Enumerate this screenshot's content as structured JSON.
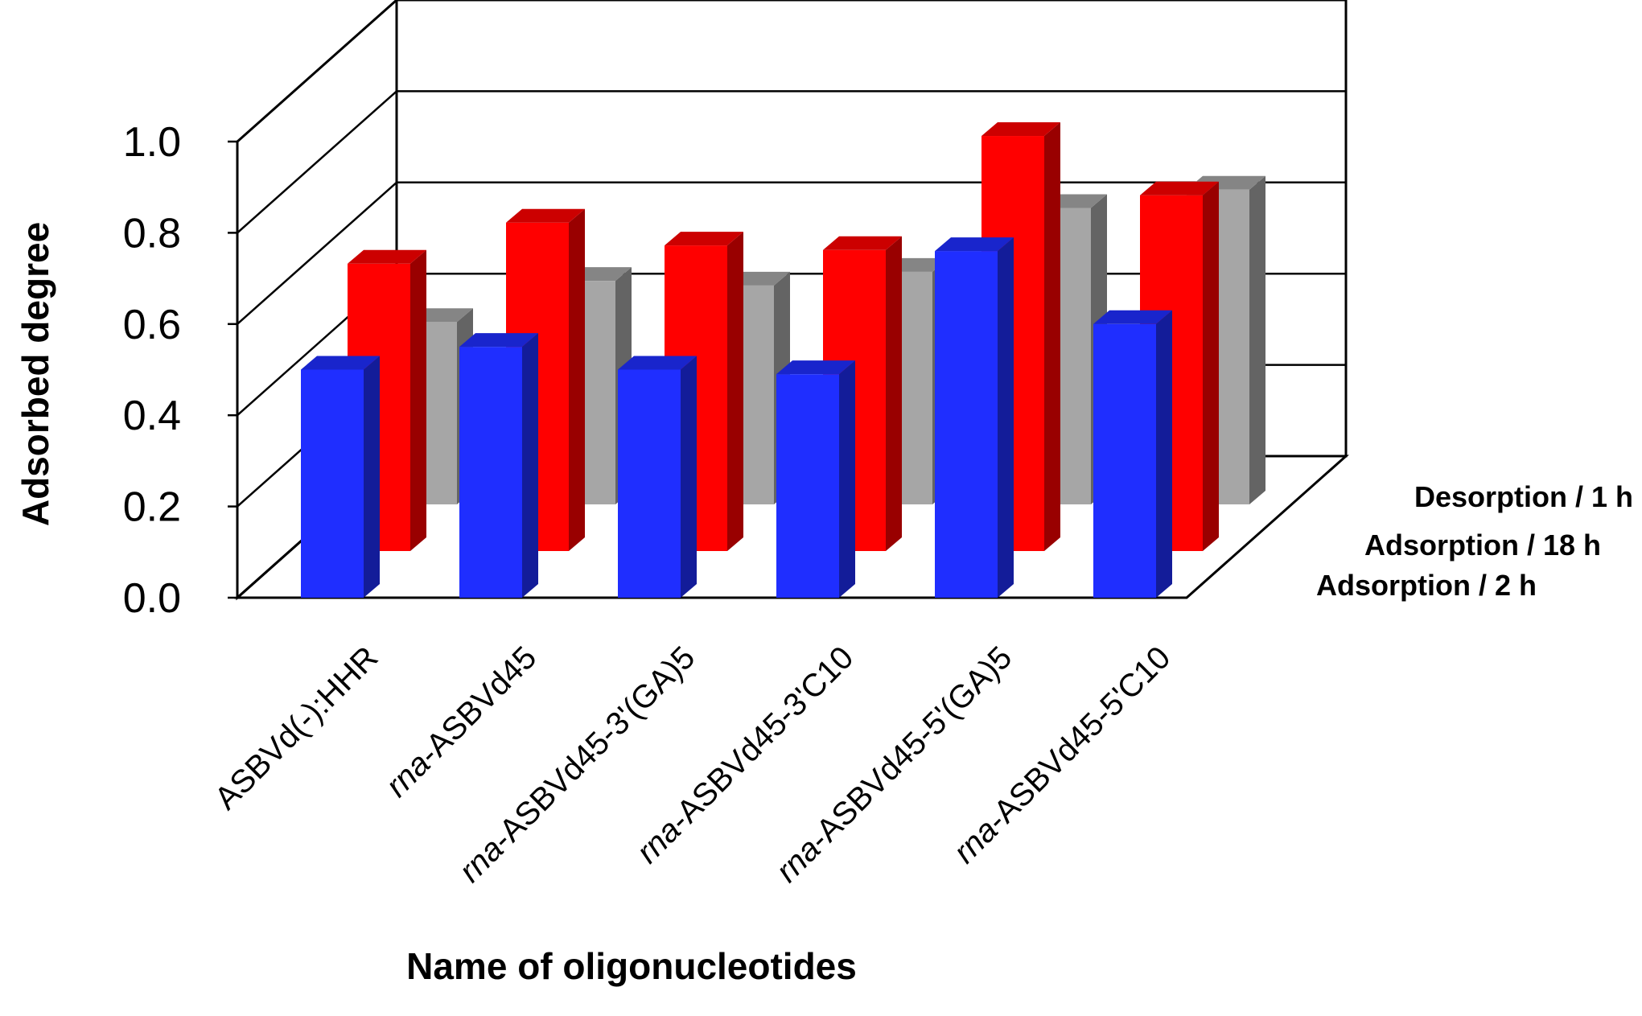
{
  "chart_data": {
    "type": "bar3d",
    "title": "",
    "ylabel": "Adsorbed degree",
    "xlabel": "Name of oligonucleotides",
    "ylim": [
      0,
      1.0
    ],
    "y_ticks": [
      "0.0",
      "0.2",
      "0.4",
      "0.6",
      "0.8",
      "1.0"
    ],
    "categories": [
      {
        "prefix": "",
        "rest": "ASBVd(-):HHR"
      },
      {
        "prefix": "rna",
        "rest": "-ASBVd45"
      },
      {
        "prefix": "rna",
        "rest": "-ASBVd45-3'(GA)5"
      },
      {
        "prefix": "rna",
        "rest": "-ASBVd45-3'C10"
      },
      {
        "prefix": "rna",
        "rest": "-ASBVd45-5'(GA)5"
      },
      {
        "prefix": "rna",
        "rest": "-ASBVd45-5'C10"
      }
    ],
    "series": [
      {
        "name": "Adsorption / 2 h",
        "color": "#1f2eff",
        "values": [
          0.5,
          0.55,
          0.5,
          0.49,
          0.76,
          0.6
        ]
      },
      {
        "name": "Adsorption / 18 h",
        "color": "#ff0000",
        "values": [
          0.63,
          0.72,
          0.67,
          0.66,
          0.91,
          0.78
        ]
      },
      {
        "name": "Desorption / 1 h",
        "color": "#a6a6a6",
        "values": [
          0.4,
          0.49,
          0.48,
          0.51,
          0.65,
          0.69
        ]
      }
    ]
  }
}
